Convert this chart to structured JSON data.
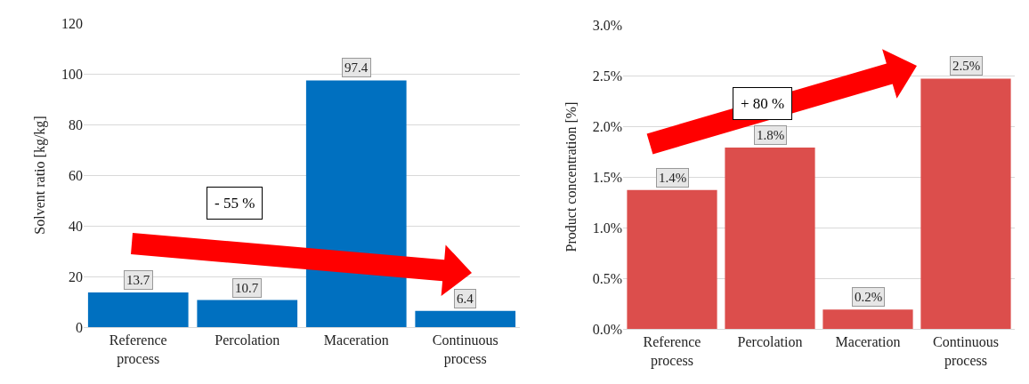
{
  "chart_data": [
    {
      "type": "bar",
      "ylabel": "Solvent ratio [kg/kg]",
      "categories": [
        "Reference process",
        "Percolation",
        "Maceration",
        "Continuous process"
      ],
      "values": [
        13.7,
        10.7,
        97.4,
        6.4
      ],
      "color": "#0070c0",
      "ylim": [
        0,
        120
      ],
      "yticks": [
        0,
        20,
        40,
        60,
        80,
        100,
        120
      ],
      "grid": "y",
      "data_labels": true,
      "annotations": [
        "- 55 %"
      ]
    },
    {
      "type": "bar",
      "ylabel": "Product concentration [%]",
      "categories": [
        "Reference process",
        "Percolation",
        "Maceration",
        "Continuous process"
      ],
      "values": [
        1.37,
        1.79,
        0.19,
        2.47
      ],
      "value_labels": [
        "1.4%",
        "1.8%",
        "0.2%",
        "2.5%"
      ],
      "color": "#dc4e4c",
      "ylim": [
        0,
        3
      ],
      "yticks": [
        {
          "value": 0,
          "label": "0.0%"
        },
        {
          "value": 0.5,
          "label": "0.5%"
        },
        {
          "value": 1,
          "label": "1.0%"
        },
        {
          "value": 1.5,
          "label": "1.5%"
        },
        {
          "value": 2,
          "label": "2.0%"
        },
        {
          "value": 2.5,
          "label": "2.5%"
        },
        {
          "value": 3,
          "label": "3.0%"
        }
      ],
      "grid": "y",
      "annotations": [
        "+ 80 %"
      ]
    }
  ]
}
